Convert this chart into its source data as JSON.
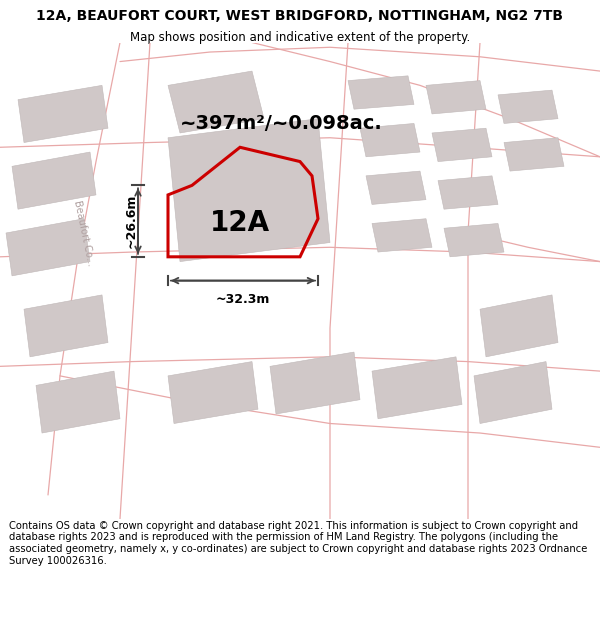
{
  "title": "12A, BEAUFORT COURT, WEST BRIDGFORD, NOTTINGHAM, NG2 7TB",
  "subtitle": "Map shows position and indicative extent of the property.",
  "footer": "Contains OS data © Crown copyright and database right 2021. This information is subject to Crown copyright and database rights 2023 and is reproduced with the permission of HM Land Registry. The polygons (including the associated geometry, namely x, y co-ordinates) are subject to Crown copyright and database rights 2023 Ordnance Survey 100026316.",
  "area_label": "~397m²/~0.098ac.",
  "plot_label": "12A",
  "dim_width": "~32.3m",
  "dim_height": "~26.6m",
  "map_bg": "#f7f3f3",
  "road_color": "#e8a8a8",
  "building_color": "#d0c8c8",
  "building_edge": "#c0b8b8",
  "highlight_color": "#cc0000",
  "title_fontsize": 10,
  "subtitle_fontsize": 8.5,
  "footer_fontsize": 7.2,
  "street_label_color": "#b0a0a0"
}
